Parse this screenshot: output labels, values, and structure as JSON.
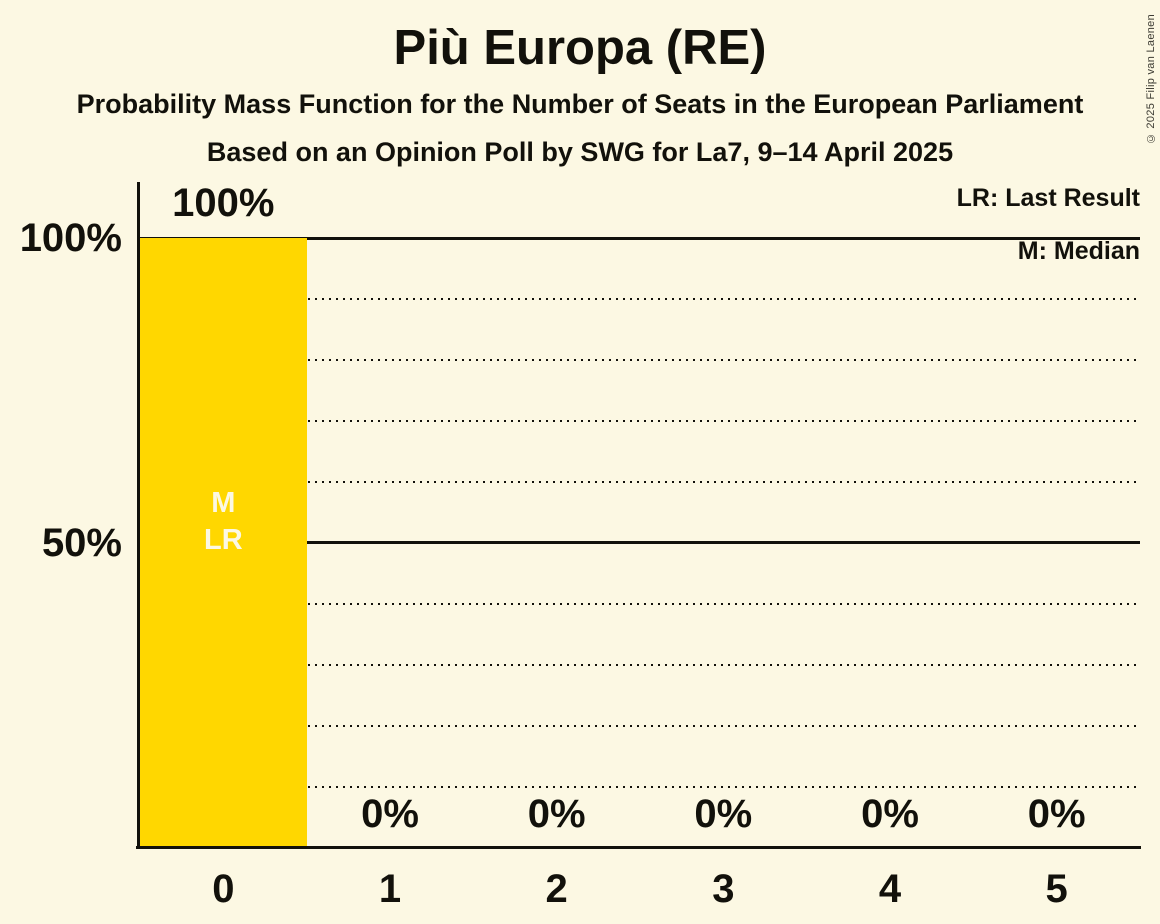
{
  "header": {
    "title": "Più Europa (RE)",
    "subtitle1": "Probability Mass Function for the Number of Seats in the European Parliament",
    "subtitle2": "Based on an Opinion Poll by SWG for La7, 9–14 April 2025"
  },
  "copyright": {
    "text": "© 2025 Filip van Laenen"
  },
  "legend": {
    "lr_label": "LR: Last Result",
    "m_label": "M: Median"
  },
  "y_axis": {
    "label_100": "100%",
    "label_50": "50%"
  },
  "bar_annotations": {
    "median_label": "M",
    "last_result_label": "LR"
  },
  "colors": {
    "background": "#FCF8E3",
    "bar": "#FFD700",
    "text": "#12110B",
    "bar_text": "#FCF8E3"
  },
  "chart_data": {
    "type": "bar",
    "title": "Più Europa (RE)",
    "categories": [
      "0",
      "1",
      "2",
      "3",
      "4",
      "5"
    ],
    "values": [
      100,
      0,
      0,
      0,
      0,
      0
    ],
    "value_labels": [
      "100%",
      "0%",
      "0%",
      "0%",
      "0%",
      "0%"
    ],
    "ylim": [
      0,
      100
    ],
    "ytick_labels": [
      "100%",
      "50%"
    ],
    "gridlines_percent": [
      10,
      20,
      30,
      40,
      50,
      60,
      70,
      80,
      90,
      100
    ],
    "solid_gridlines_percent": [
      50,
      100
    ],
    "grid": "dotted horizontal lines every 10%",
    "legend_position": "top-right",
    "annotated_bars": {
      "0": [
        "M",
        "LR"
      ]
    }
  }
}
